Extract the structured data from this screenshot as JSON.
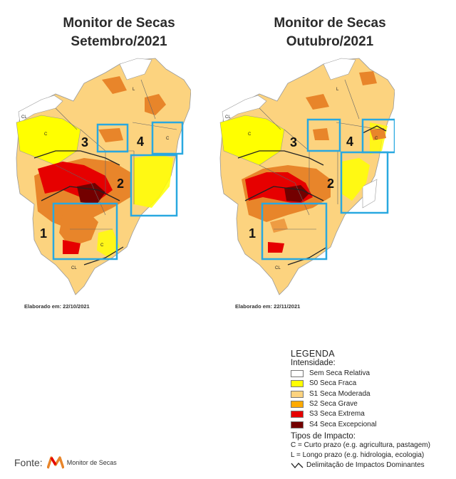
{
  "maps": [
    {
      "title_line1": "Monitor de Secas",
      "title_line2": "Setembro/2021",
      "elaborado": "Elaborado em: 22/10/2021",
      "regions": [
        "1",
        "2",
        "3",
        "4"
      ]
    },
    {
      "title_line1": "Monitor de Secas",
      "title_line2": "Outubro/2021",
      "elaborado": "Elaborado em: 22/11/2021",
      "regions": [
        "1",
        "2",
        "3",
        "4"
      ]
    }
  ],
  "impact_labels": {
    "curto": "C",
    "longo": "L",
    "cl": "CL"
  },
  "legend": {
    "title": "LEGENDA",
    "intensity_title": "Intensidade:",
    "items": [
      {
        "label": "Sem Seca Relativa",
        "color": "#ffffff"
      },
      {
        "label": "S0 Seca Fraca",
        "color": "#ffff00"
      },
      {
        "label": "S1 Seca Moderada",
        "color": "#fcd37f"
      },
      {
        "label": "S2 Seca Grave",
        "color": "#ffaa00"
      },
      {
        "label": "S3 Seca Extrema",
        "color": "#e60000"
      },
      {
        "label": "S4 Seca Excepcional",
        "color": "#730000"
      }
    ],
    "impact_title": "Tipos de Impacto:",
    "impact_c": "C = Curto prazo (e.g. agricultura, pastagem)",
    "impact_l": "L = Longo prazo (e.g. hidrologia, ecologia)",
    "impact_line": "Delimitação de Impactos Dominantes"
  },
  "footer": {
    "fonte": "Fonte:",
    "brand": "Monitor de Secas"
  },
  "colors": {
    "highlight_box": "#29a8e0",
    "map_s1": "#fcd37f",
    "map_s2": "#e8852a",
    "map_s3": "#e60000",
    "map_s4": "#730000"
  }
}
